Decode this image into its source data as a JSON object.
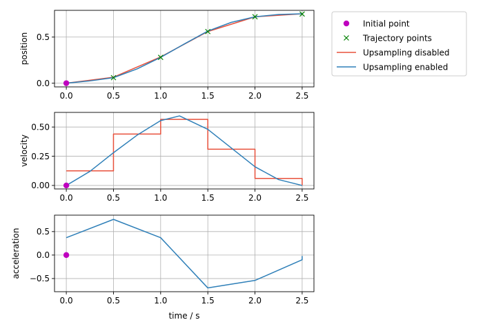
{
  "chart_data": [
    {
      "type": "line",
      "ylabel": "position",
      "xlabel": "",
      "xlim": [
        -0.125,
        2.625
      ],
      "ylim": [
        -0.04,
        0.79
      ],
      "xticks": [
        "0.0",
        "0.5",
        "1.0",
        "1.5",
        "2.0",
        "2.5"
      ],
      "yticks": [
        {
          "v": 0.0,
          "label": "0.0"
        },
        {
          "v": 0.5,
          "label": "0.5"
        }
      ],
      "grid": true,
      "initial_point": {
        "x": 0.0,
        "y": 0.0
      },
      "trajectory_points": {
        "x": [
          0.5,
          1.0,
          1.5,
          2.0,
          2.5
        ],
        "y": [
          0.06,
          0.28,
          0.56,
          0.72,
          0.75
        ]
      },
      "series": [
        {
          "name": "Upsampling disabled",
          "color": "#e8503b",
          "step": false,
          "x": [
            0.0,
            0.5,
            1.0,
            1.5,
            2.0,
            2.5
          ],
          "y": [
            0.0,
            0.065,
            0.285,
            0.56,
            0.72,
            0.753
          ]
        },
        {
          "name": "Upsampling enabled",
          "color": "#2e7fb8",
          "step": false,
          "x": [
            0.0,
            0.25,
            0.5,
            0.75,
            1.0,
            1.25,
            1.5,
            1.75,
            2.0,
            2.25,
            2.5
          ],
          "y": [
            0.0,
            0.025,
            0.06,
            0.155,
            0.28,
            0.425,
            0.565,
            0.66,
            0.72,
            0.745,
            0.753
          ]
        }
      ]
    },
    {
      "type": "line",
      "ylabel": "velocity",
      "xlabel": "",
      "xlim": [
        -0.125,
        2.625
      ],
      "ylim": [
        -0.03,
        0.625
      ],
      "xticks": [
        "0.0",
        "0.5",
        "1.0",
        "1.5",
        "2.0",
        "2.5"
      ],
      "yticks": [
        {
          "v": 0.0,
          "label": "0.00"
        },
        {
          "v": 0.25,
          "label": "0.25"
        },
        {
          "v": 0.5,
          "label": "0.50"
        }
      ],
      "grid": true,
      "initial_point": {
        "x": 0.0,
        "y": 0.0
      },
      "series": [
        {
          "name": "Upsampling disabled",
          "color": "#e8503b",
          "step": true,
          "x": [
            0.0,
            0.5,
            0.5,
            1.0,
            1.0,
            1.5,
            1.5,
            2.0,
            2.0,
            2.5,
            2.5
          ],
          "y": [
            0.125,
            0.125,
            0.44,
            0.44,
            0.565,
            0.565,
            0.31,
            0.31,
            0.06,
            0.06,
            0.0
          ]
        },
        {
          "name": "Upsampling enabled",
          "color": "#2e7fb8",
          "step": false,
          "x": [
            0.0,
            0.25,
            0.5,
            0.75,
            1.0,
            1.2,
            1.5,
            1.75,
            2.0,
            2.25,
            2.5
          ],
          "y": [
            0.0,
            0.12,
            0.28,
            0.43,
            0.555,
            0.595,
            0.48,
            0.32,
            0.16,
            0.05,
            0.0
          ]
        }
      ]
    },
    {
      "type": "line",
      "ylabel": "acceleration",
      "xlabel": "time / s",
      "xlim": [
        -0.125,
        2.625
      ],
      "ylim": [
        -0.78,
        0.85
      ],
      "xticks": [
        "0.0",
        "0.5",
        "1.0",
        "1.5",
        "2.0",
        "2.5"
      ],
      "yticks": [
        {
          "v": -0.5,
          "label": "−0.5"
        },
        {
          "v": 0.0,
          "label": "0.0"
        },
        {
          "v": 0.5,
          "label": "0.5"
        }
      ],
      "grid": true,
      "initial_point": {
        "x": 0.0,
        "y": 0.0
      },
      "series": [
        {
          "name": "Upsampling enabled",
          "color": "#2e7fb8",
          "step": false,
          "x": [
            0.0,
            0.5,
            1.0,
            1.5,
            2.0,
            2.5,
            2.5
          ],
          "y": [
            0.37,
            0.76,
            0.37,
            -0.7,
            -0.54,
            -0.1,
            -0.02
          ]
        }
      ]
    }
  ],
  "legend": {
    "placement": "outside-top-right",
    "items": [
      {
        "label": "Initial point",
        "marker": "circle",
        "color": "#bf00bf"
      },
      {
        "label": "Trajectory points",
        "marker": "x",
        "color": "#008000"
      },
      {
        "label": "Upsampling disabled",
        "marker": "line",
        "color": "#e8503b"
      },
      {
        "label": "Upsampling enabled",
        "marker": "line",
        "color": "#2e7fb8"
      }
    ]
  },
  "colors": {
    "grid": "#b0b0b0",
    "initial_point": "#bf00bf",
    "trajectory": "#008000"
  }
}
